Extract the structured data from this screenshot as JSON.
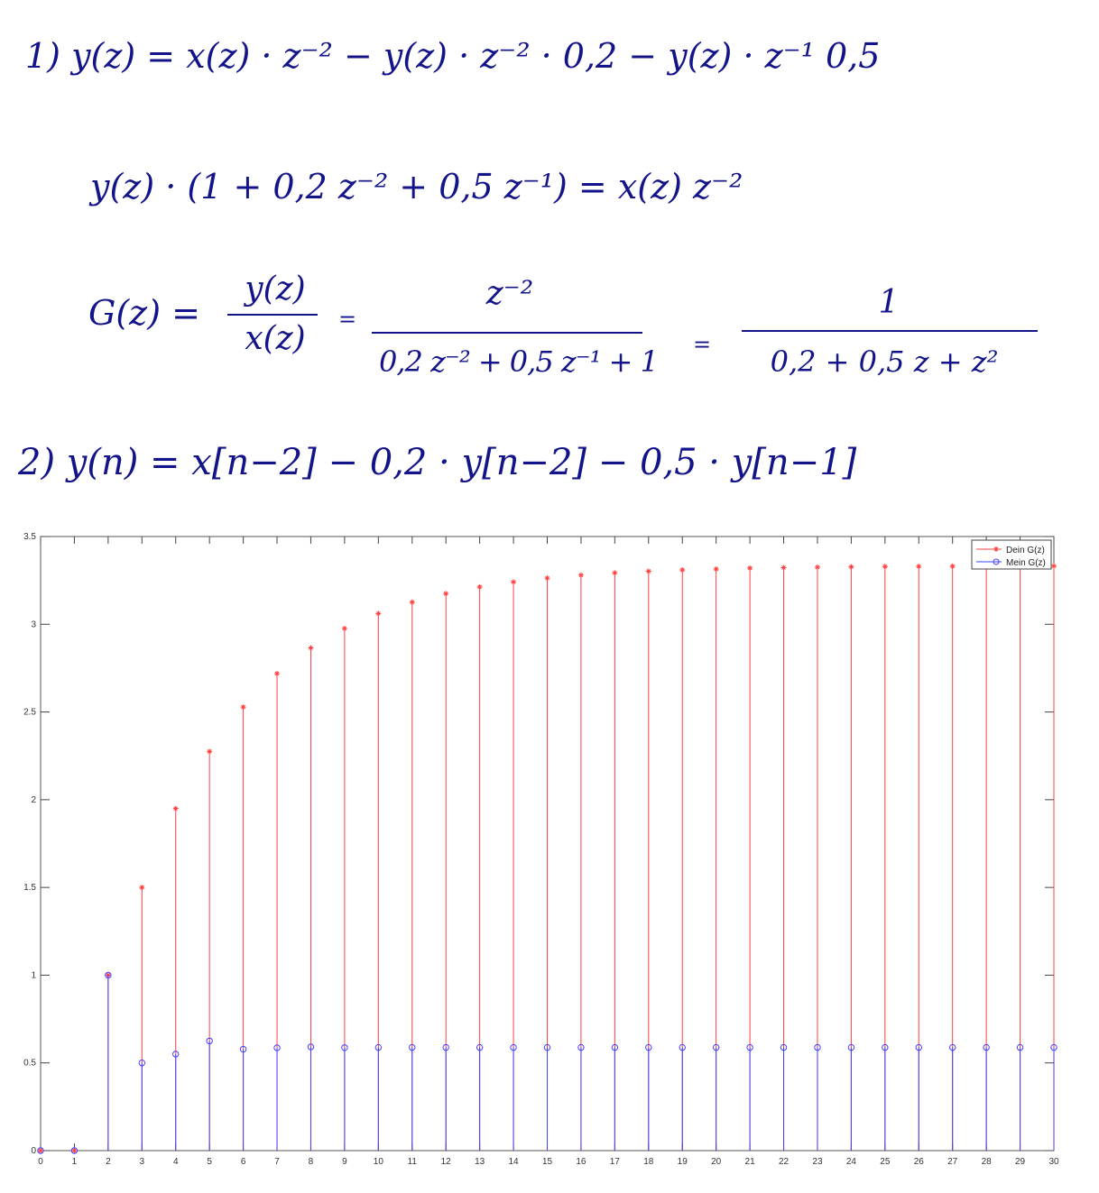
{
  "equations": {
    "eq1": "1)  y(z) = x(z) · z⁻² − y(z) · z⁻² · 0,2 − y(z) · z⁻¹ 0,5",
    "eq2": "y(z) · (1 + 0,2 z⁻² + 0,5 z⁻¹) = x(z) z⁻²",
    "eq3_lhs": "G(z) =",
    "eq3_num1": "y(z)",
    "eq3_den1": "x(z)",
    "eq3_eq1": "=",
    "eq3_num2": "z⁻²",
    "eq3_den2": "0,2 z⁻² + 0,5 z⁻¹ + 1",
    "eq3_eq2": "=",
    "eq3_num3": "1",
    "eq3_den3": "0,2 + 0,5 z + z²",
    "eq4": "2)  y(n) = x[n−2] − 0,2 · y[n−2] − 0,5 · y[n−1]"
  },
  "chart_data": {
    "type": "stem",
    "xlim": [
      0,
      30
    ],
    "ylim": [
      0,
      3.5
    ],
    "xticks": [
      0,
      1,
      2,
      3,
      4,
      5,
      6,
      7,
      8,
      9,
      10,
      11,
      12,
      13,
      14,
      15,
      16,
      17,
      18,
      19,
      20,
      21,
      22,
      23,
      24,
      25,
      26,
      27,
      28,
      29,
      30
    ],
    "yticks": [
      "0",
      "0.5",
      "1",
      "1.5",
      "2",
      "2.5",
      "3",
      "3.5"
    ],
    "ytick_values": [
      0,
      0.5,
      1,
      1.5,
      2,
      2.5,
      3,
      3.5
    ],
    "legend_position": "top-right",
    "grid": false,
    "x": [
      0,
      1,
      2,
      3,
      4,
      5,
      6,
      7,
      8,
      9,
      10,
      11,
      12,
      13,
      14,
      15,
      16,
      17,
      18,
      19,
      20,
      21,
      22,
      23,
      24,
      25,
      26,
      27,
      28,
      29,
      30
    ],
    "series": [
      {
        "name": "Dein G(z)",
        "color": "#ff4040",
        "marker": "star",
        "values": [
          0,
          0,
          1,
          1.5,
          1.95,
          2.275,
          2.528,
          2.719,
          2.865,
          2.976,
          3.061,
          3.126,
          3.175,
          3.213,
          3.241,
          3.263,
          3.28,
          3.293,
          3.302,
          3.31,
          3.315,
          3.32,
          3.323,
          3.325,
          3.327,
          3.329,
          3.33,
          3.331,
          3.331,
          3.332,
          3.332
        ]
      },
      {
        "name": "Mein G(z)",
        "color": "#4040ff",
        "marker": "circle",
        "values": [
          0,
          0,
          1,
          0.5,
          0.55,
          0.625,
          0.578,
          0.586,
          0.591,
          0.587,
          0.588,
          0.588,
          0.588,
          0.588,
          0.588,
          0.588,
          0.588,
          0.588,
          0.588,
          0.588,
          0.588,
          0.588,
          0.588,
          0.588,
          0.588,
          0.588,
          0.588,
          0.588,
          0.588,
          0.588,
          0.588
        ]
      }
    ]
  }
}
